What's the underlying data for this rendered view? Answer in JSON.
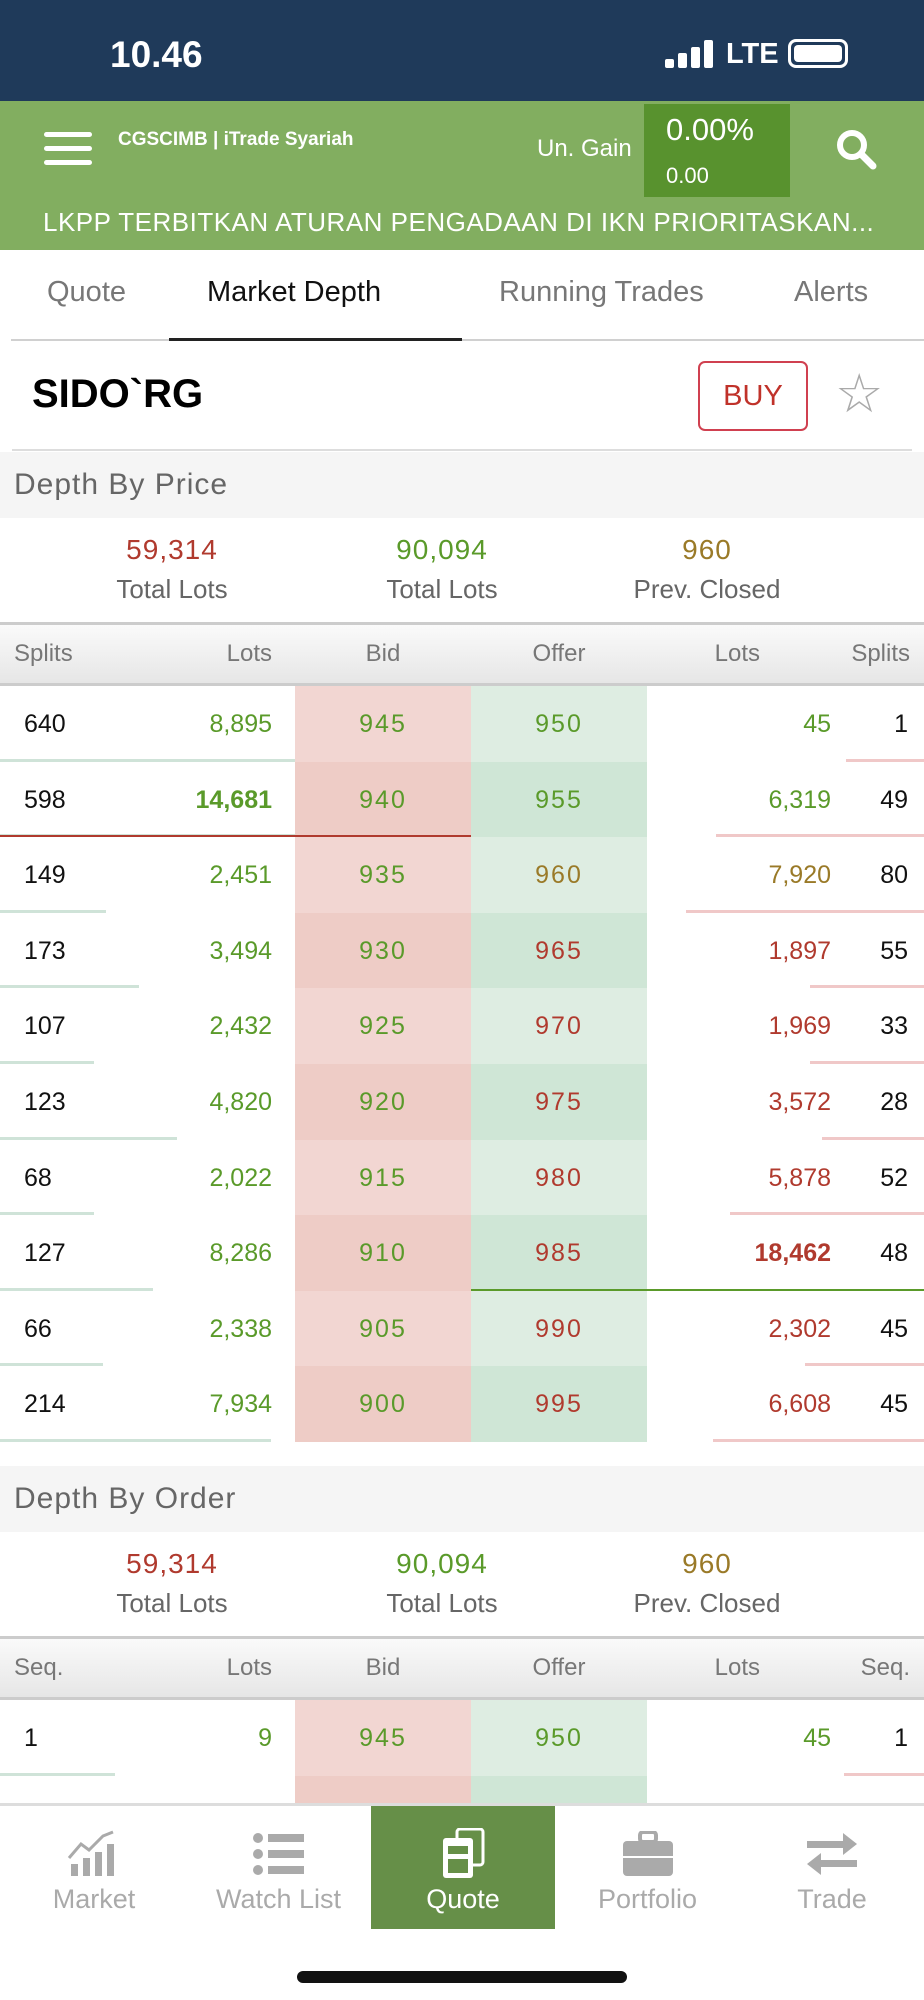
{
  "status": {
    "time": "10.46",
    "network": "LTE"
  },
  "header": {
    "logo": "CGSCIMB | iTrade Syariah",
    "ungain_label": "Un. Gain",
    "gain_pct": "0.00%",
    "gain_val": "0.00",
    "ticker": "LKPP TERBITKAN ATURAN PENGADAAN DI IKN PRIORITASKAN..."
  },
  "tabs": [
    "Quote",
    "Market Depth",
    "Running Trades",
    "Alerts"
  ],
  "symbol": "SIDO`RG",
  "buy_label": "BUY",
  "colors": {
    "red": "#b03a2e",
    "green": "#5a9a2a",
    "olive": "#9a7a28",
    "accent": "#82ae60"
  },
  "depth_price": {
    "title": "Depth By Price",
    "totals": [
      {
        "n": "59,314",
        "l": "Total Lots",
        "c": "r"
      },
      {
        "n": "90,094",
        "l": "Total Lots",
        "c": "g"
      },
      {
        "n": "960",
        "l": "Prev. Closed",
        "c": "o"
      }
    ],
    "headers": [
      "Splits",
      "Lots",
      "Bid",
      "Offer",
      "Lots",
      "Splits"
    ],
    "rows": [
      {
        "bs": "640",
        "bl": "8,895",
        "bid": "945",
        "off": "950",
        "ol": "45",
        "os": "1",
        "bc": "g",
        "oc": "g",
        "olc": "g",
        "bf": 1.0,
        "af": 0.28
      },
      {
        "bs": "598",
        "bl": "14,681",
        "bid": "940",
        "off": "955",
        "ol": "6,319",
        "os": "49",
        "bc": "g",
        "oc": "g",
        "olc": "g",
        "bf": 1.0,
        "af": 0.75,
        "bbold": true,
        "rline": true
      },
      {
        "bs": "149",
        "bl": "2,451",
        "bid": "935",
        "off": "960",
        "ol": "7,920",
        "os": "80",
        "bc": "g",
        "oc": "o",
        "olc": "o",
        "bf": 0.36,
        "af": 0.86
      },
      {
        "bs": "173",
        "bl": "3,494",
        "bid": "930",
        "off": "965",
        "ol": "1,897",
        "os": "55",
        "bc": "g",
        "oc": "r",
        "olc": "r",
        "bf": 0.47,
        "af": 0.41
      },
      {
        "bs": "107",
        "bl": "2,432",
        "bid": "925",
        "off": "970",
        "ol": "1,969",
        "os": "33",
        "bc": "g",
        "oc": "r",
        "olc": "r",
        "bf": 0.32,
        "af": 0.41
      },
      {
        "bs": "123",
        "bl": "4,820",
        "bid": "920",
        "off": "975",
        "ol": "3,572",
        "os": "28",
        "bc": "g",
        "oc": "r",
        "olc": "r",
        "bf": 0.6,
        "af": 0.37
      },
      {
        "bs": "68",
        "bl": "2,022",
        "bid": "915",
        "off": "980",
        "ol": "5,878",
        "os": "52",
        "bc": "g",
        "oc": "r",
        "olc": "r",
        "bf": 0.32,
        "af": 0.7
      },
      {
        "bs": "127",
        "bl": "8,286",
        "bid": "910",
        "off": "985",
        "ol": "18,462",
        "os": "48",
        "bc": "g",
        "oc": "r",
        "olc": "r",
        "bf": 0.52,
        "af": 0,
        "obold": true,
        "gline": true
      },
      {
        "bs": "66",
        "bl": "2,338",
        "bid": "905",
        "off": "990",
        "ol": "2,302",
        "os": "45",
        "bc": "g",
        "oc": "r",
        "olc": "r",
        "bf": 0.35,
        "af": 0.43
      },
      {
        "bs": "214",
        "bl": "7,934",
        "bid": "900",
        "off": "995",
        "ol": "6,608",
        "os": "45",
        "bc": "g",
        "oc": "r",
        "olc": "r",
        "bf": 0.92,
        "af": 0.76
      }
    ]
  },
  "depth_order": {
    "title": "Depth By Order",
    "totals": [
      {
        "n": "59,314",
        "l": "Total Lots",
        "c": "r"
      },
      {
        "n": "90,094",
        "l": "Total Lots",
        "c": "g"
      },
      {
        "n": "960",
        "l": "Prev. Closed",
        "c": "o"
      }
    ],
    "headers": [
      "Seq.",
      "Lots",
      "Bid",
      "Offer",
      "Lots",
      "Seq."
    ],
    "rows": [
      {
        "bs": "1",
        "bl": "9",
        "bid": "945",
        "off": "950",
        "ol": "45",
        "os": "1",
        "bc": "g",
        "oc": "g",
        "olc": "g",
        "bf": 0.39,
        "af": 0.29
      },
      {
        "bs": "",
        "bl": "",
        "bid": "",
        "off": "",
        "ol": "",
        "os": "",
        "bc": "g",
        "oc": "g",
        "olc": "g",
        "bf": 0,
        "af": 0
      }
    ]
  },
  "nav": [
    {
      "label": "Market",
      "icon": "chart-icon"
    },
    {
      "label": "Watch List",
      "icon": "list-icon"
    },
    {
      "label": "Quote",
      "icon": "quote-icon",
      "active": true
    },
    {
      "label": "Portfolio",
      "icon": "briefcase-icon"
    },
    {
      "label": "Trade",
      "icon": "transfer-icon"
    }
  ]
}
